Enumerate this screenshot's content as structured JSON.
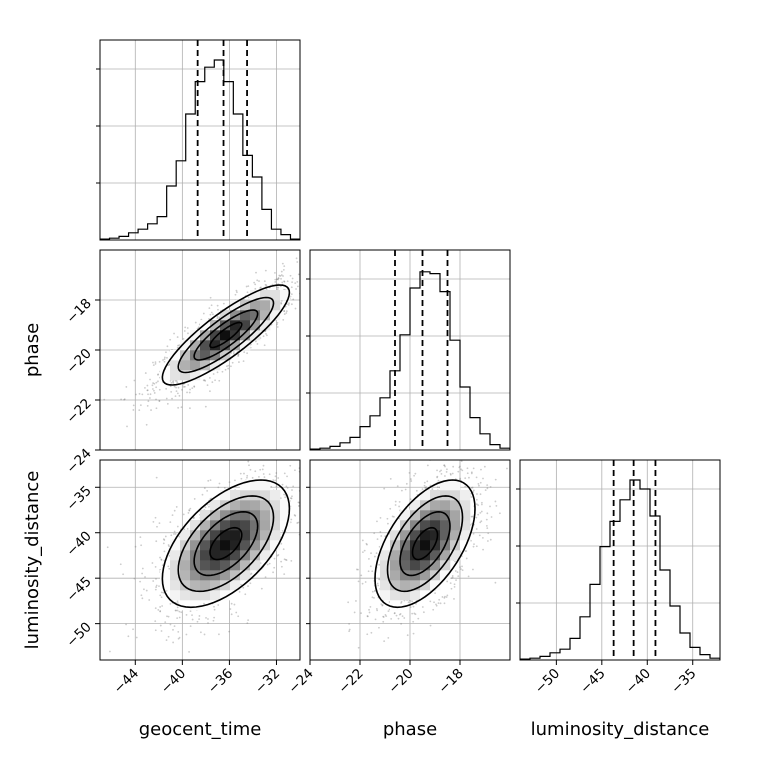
{
  "chart_data": {
    "type": "corner",
    "parameters": [
      "geocent_time",
      "phase",
      "luminosity_distance"
    ],
    "labels": {
      "geocent_time": "geocent_time",
      "phase": "phase",
      "luminosity_distance": "luminosity_distance"
    },
    "ranges": {
      "geocent_time": [
        -47,
        -30
      ],
      "phase": [
        -24,
        -16
      ],
      "luminosity_distance": [
        -54,
        -32
      ]
    },
    "ticks": {
      "geocent_time": [
        -44,
        -40,
        -36,
        -32
      ],
      "phase": [
        -24,
        -22,
        -20,
        -18
      ],
      "luminosity_distance": [
        -50,
        -45,
        -40,
        -35
      ]
    },
    "quantiles": {
      "geocent_time": [
        -38.7,
        -36.5,
        -34.5
      ],
      "phase": [
        -20.6,
        -19.5,
        -18.5
      ],
      "luminosity_distance": [
        -43.7,
        -41.5,
        -39.1
      ]
    },
    "histograms": {
      "geocent_time": [
        0.005,
        0.01,
        0.02,
        0.04,
        0.06,
        0.09,
        0.13,
        0.3,
        0.44,
        0.7,
        0.88,
        0.96,
        1.0,
        0.88,
        0.7,
        0.47,
        0.35,
        0.17,
        0.06,
        0.03,
        0.005
      ],
      "phase": [
        0.005,
        0.01,
        0.02,
        0.04,
        0.07,
        0.13,
        0.19,
        0.29,
        0.44,
        0.64,
        0.9,
        0.99,
        0.98,
        0.88,
        0.61,
        0.35,
        0.18,
        0.09,
        0.03,
        0.01
      ],
      "luminosity_distance": [
        0.005,
        0.01,
        0.02,
        0.04,
        0.06,
        0.12,
        0.24,
        0.42,
        0.63,
        0.77,
        0.89,
        1.0,
        0.95,
        0.8,
        0.5,
        0.3,
        0.15,
        0.07,
        0.03,
        0.01
      ]
    },
    "pairs": [
      {
        "x": "geocent_time",
        "y": "phase",
        "mean": [
          -36.3,
          -19.4
        ],
        "sd": [
          2.7,
          1.0
        ],
        "corr": 0.85
      },
      {
        "x": "geocent_time",
        "y": "luminosity_distance",
        "mean": [
          -36.3,
          -41.2
        ],
        "sd": [
          2.7,
          3.5
        ],
        "corr": 0.55
      },
      {
        "x": "phase",
        "y": "luminosity_distance",
        "mean": [
          -19.4,
          -41.2
        ],
        "sd": [
          1.0,
          3.5
        ],
        "corr": 0.55
      }
    ],
    "contour_levels_sigma": [
      0.5,
      1.0,
      1.5,
      2.0
    ],
    "grid": true,
    "colors": {
      "line": "#000000",
      "grid": "#b0b0b0",
      "scatter": "#7f7f7f"
    }
  }
}
